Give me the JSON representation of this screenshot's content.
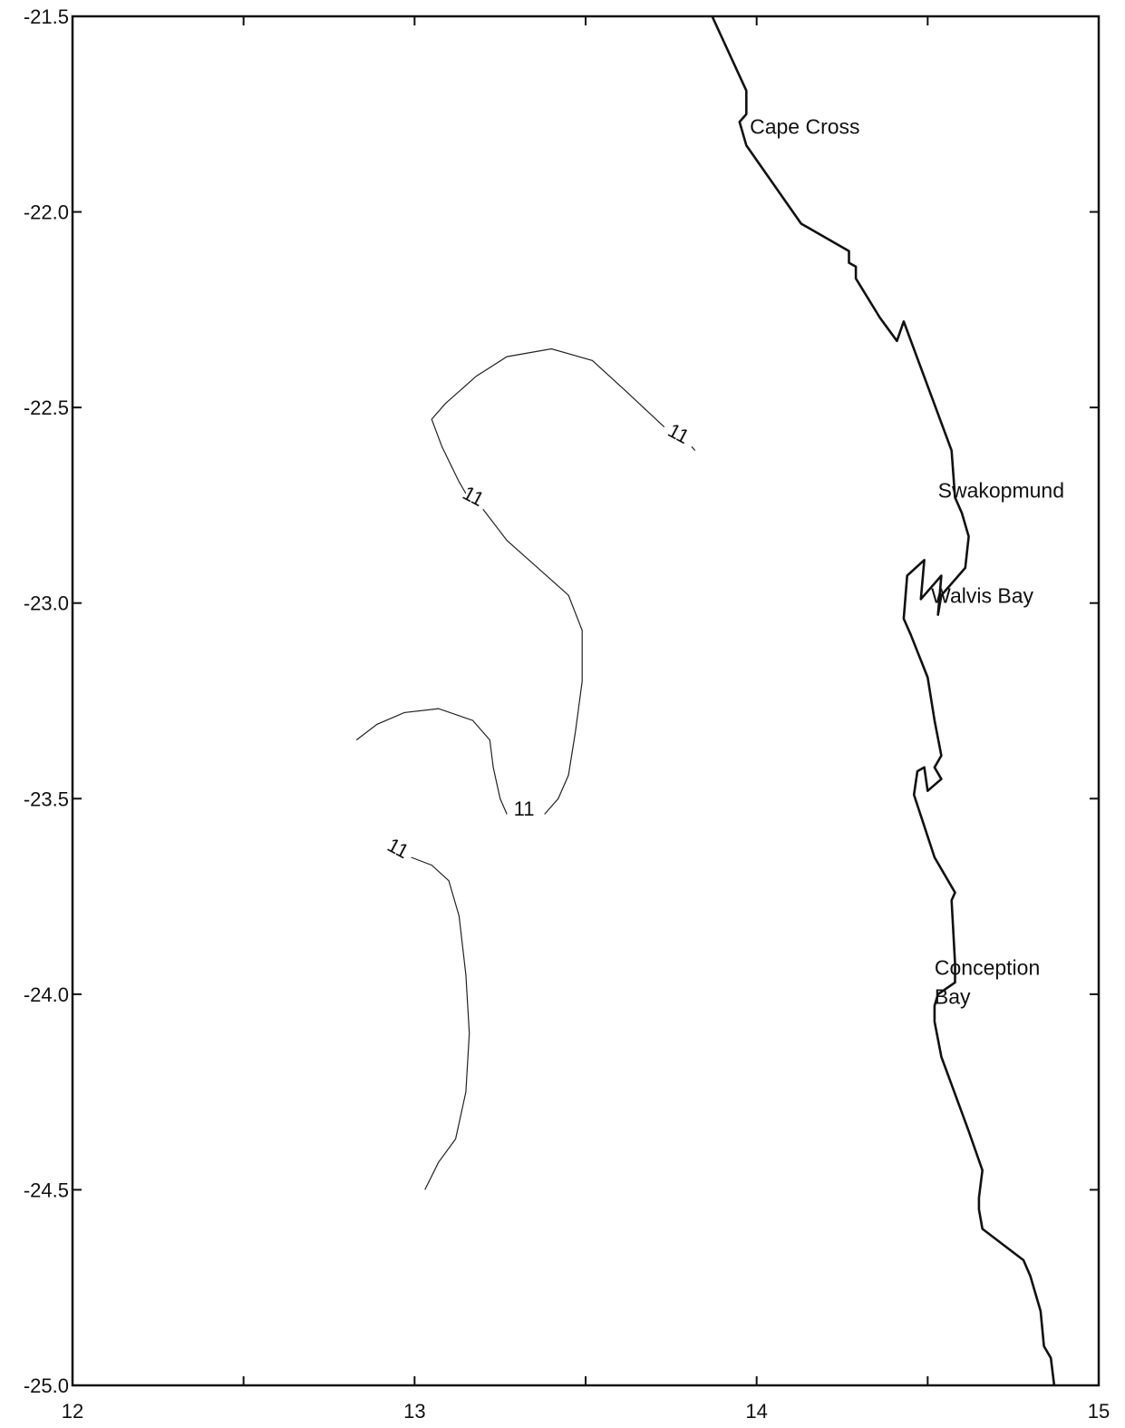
{
  "map": {
    "x_ticks": [
      "12",
      "13",
      "14",
      "15"
    ],
    "y_ticks": [
      "-21.5",
      "-22.0",
      "-22.5",
      "-23.0",
      "-23.5",
      "-24.0",
      "-24.5",
      "-25.0"
    ],
    "places": [
      {
        "name": "Cape Cross",
        "lines": [
          "Cape Cross"
        ],
        "lon": 13.98,
        "lat": -21.8
      },
      {
        "name": "Swakopmund",
        "lines": [
          "Swakopmund"
        ],
        "lon": 14.53,
        "lat": -22.73
      },
      {
        "name": "Walvis Bay",
        "lines": [
          "Walvis Bay"
        ],
        "lon": 14.51,
        "lat": -23.0
      },
      {
        "name": "Conception Bay",
        "lines": [
          "Conception",
          "Bay"
        ],
        "lon": 14.52,
        "lat": -23.95
      }
    ],
    "contour_labels": [
      {
        "text": "11",
        "lon": 13.77,
        "lat": -22.57,
        "rotate": 28
      },
      {
        "text": "11",
        "lon": 13.17,
        "lat": -22.73,
        "rotate": 28
      },
      {
        "text": "11",
        "lon": 13.32,
        "lat": -23.53,
        "rotate": 0
      },
      {
        "text": "11",
        "lon": 12.95,
        "lat": -23.63,
        "rotate": 28
      }
    ],
    "coastline": [
      [
        13.87,
        -21.5
      ],
      [
        13.97,
        -21.69
      ],
      [
        13.97,
        -21.75
      ],
      [
        13.95,
        -21.77
      ],
      [
        13.97,
        -21.83
      ],
      [
        14.13,
        -22.03
      ],
      [
        14.27,
        -22.1
      ],
      [
        14.27,
        -22.13
      ],
      [
        14.29,
        -22.14
      ],
      [
        14.29,
        -22.17
      ],
      [
        14.36,
        -22.27
      ],
      [
        14.41,
        -22.33
      ],
      [
        14.43,
        -22.28
      ],
      [
        14.57,
        -22.61
      ],
      [
        14.58,
        -22.73
      ],
      [
        14.6,
        -22.77
      ],
      [
        14.62,
        -22.83
      ],
      [
        14.61,
        -22.91
      ],
      [
        14.56,
        -22.96
      ],
      [
        14.54,
        -22.98
      ],
      [
        14.53,
        -23.03
      ],
      [
        14.54,
        -22.93
      ],
      [
        14.48,
        -22.99
      ],
      [
        14.49,
        -22.89
      ],
      [
        14.44,
        -22.93
      ],
      [
        14.43,
        -23.04
      ],
      [
        14.45,
        -23.08
      ],
      [
        14.5,
        -23.19
      ],
      [
        14.52,
        -23.3
      ],
      [
        14.54,
        -23.39
      ],
      [
        14.52,
        -23.42
      ],
      [
        14.54,
        -23.45
      ],
      [
        14.5,
        -23.48
      ],
      [
        14.49,
        -23.42
      ],
      [
        14.47,
        -23.43
      ],
      [
        14.46,
        -23.49
      ],
      [
        14.52,
        -23.65
      ],
      [
        14.58,
        -23.74
      ],
      [
        14.57,
        -23.76
      ],
      [
        14.58,
        -23.92
      ],
      [
        14.58,
        -23.97
      ],
      [
        14.53,
        -24.0
      ],
      [
        14.52,
        -24.03
      ],
      [
        14.52,
        -24.07
      ],
      [
        14.54,
        -24.16
      ],
      [
        14.62,
        -24.35
      ],
      [
        14.66,
        -24.45
      ],
      [
        14.65,
        -24.52
      ],
      [
        14.65,
        -24.55
      ],
      [
        14.66,
        -24.6
      ],
      [
        14.78,
        -24.68
      ],
      [
        14.8,
        -24.72
      ],
      [
        14.83,
        -24.81
      ],
      [
        14.84,
        -24.9
      ],
      [
        14.86,
        -24.93
      ],
      [
        14.87,
        -25.0
      ]
    ],
    "contours": [
      [
        [
          13.82,
          -22.61
        ],
        [
          13.81,
          -22.6
        ]
      ],
      [
        [
          13.73,
          -22.55
        ],
        [
          13.62,
          -22.46
        ],
        [
          13.52,
          -22.38
        ],
        [
          13.4,
          -22.35
        ],
        [
          13.27,
          -22.37
        ],
        [
          13.18,
          -22.42
        ],
        [
          13.09,
          -22.49
        ],
        [
          13.05,
          -22.53
        ],
        [
          13.08,
          -22.6
        ],
        [
          13.13,
          -22.69
        ],
        [
          13.15,
          -22.72
        ]
      ],
      [
        [
          13.2,
          -22.76
        ],
        [
          13.27,
          -22.84
        ],
        [
          13.36,
          -22.91
        ],
        [
          13.45,
          -22.98
        ],
        [
          13.49,
          -23.07
        ],
        [
          13.49,
          -23.2
        ],
        [
          13.47,
          -23.33
        ],
        [
          13.45,
          -23.44
        ],
        [
          13.42,
          -23.5
        ],
        [
          13.38,
          -23.54
        ]
      ],
      [
        [
          13.27,
          -23.54
        ],
        [
          13.25,
          -23.5
        ],
        [
          13.23,
          -23.42
        ],
        [
          13.22,
          -23.35
        ],
        [
          13.17,
          -23.3
        ],
        [
          13.07,
          -23.27
        ],
        [
          12.97,
          -23.28
        ],
        [
          12.89,
          -23.31
        ],
        [
          12.83,
          -23.35
        ]
      ],
      [
        [
          12.99,
          -23.65
        ],
        [
          13.05,
          -23.67
        ],
        [
          13.1,
          -23.71
        ],
        [
          13.13,
          -23.8
        ],
        [
          13.15,
          -23.95
        ],
        [
          13.16,
          -24.1
        ],
        [
          13.15,
          -24.25
        ],
        [
          13.12,
          -24.37
        ],
        [
          13.07,
          -24.43
        ],
        [
          13.03,
          -24.5
        ]
      ]
    ]
  }
}
